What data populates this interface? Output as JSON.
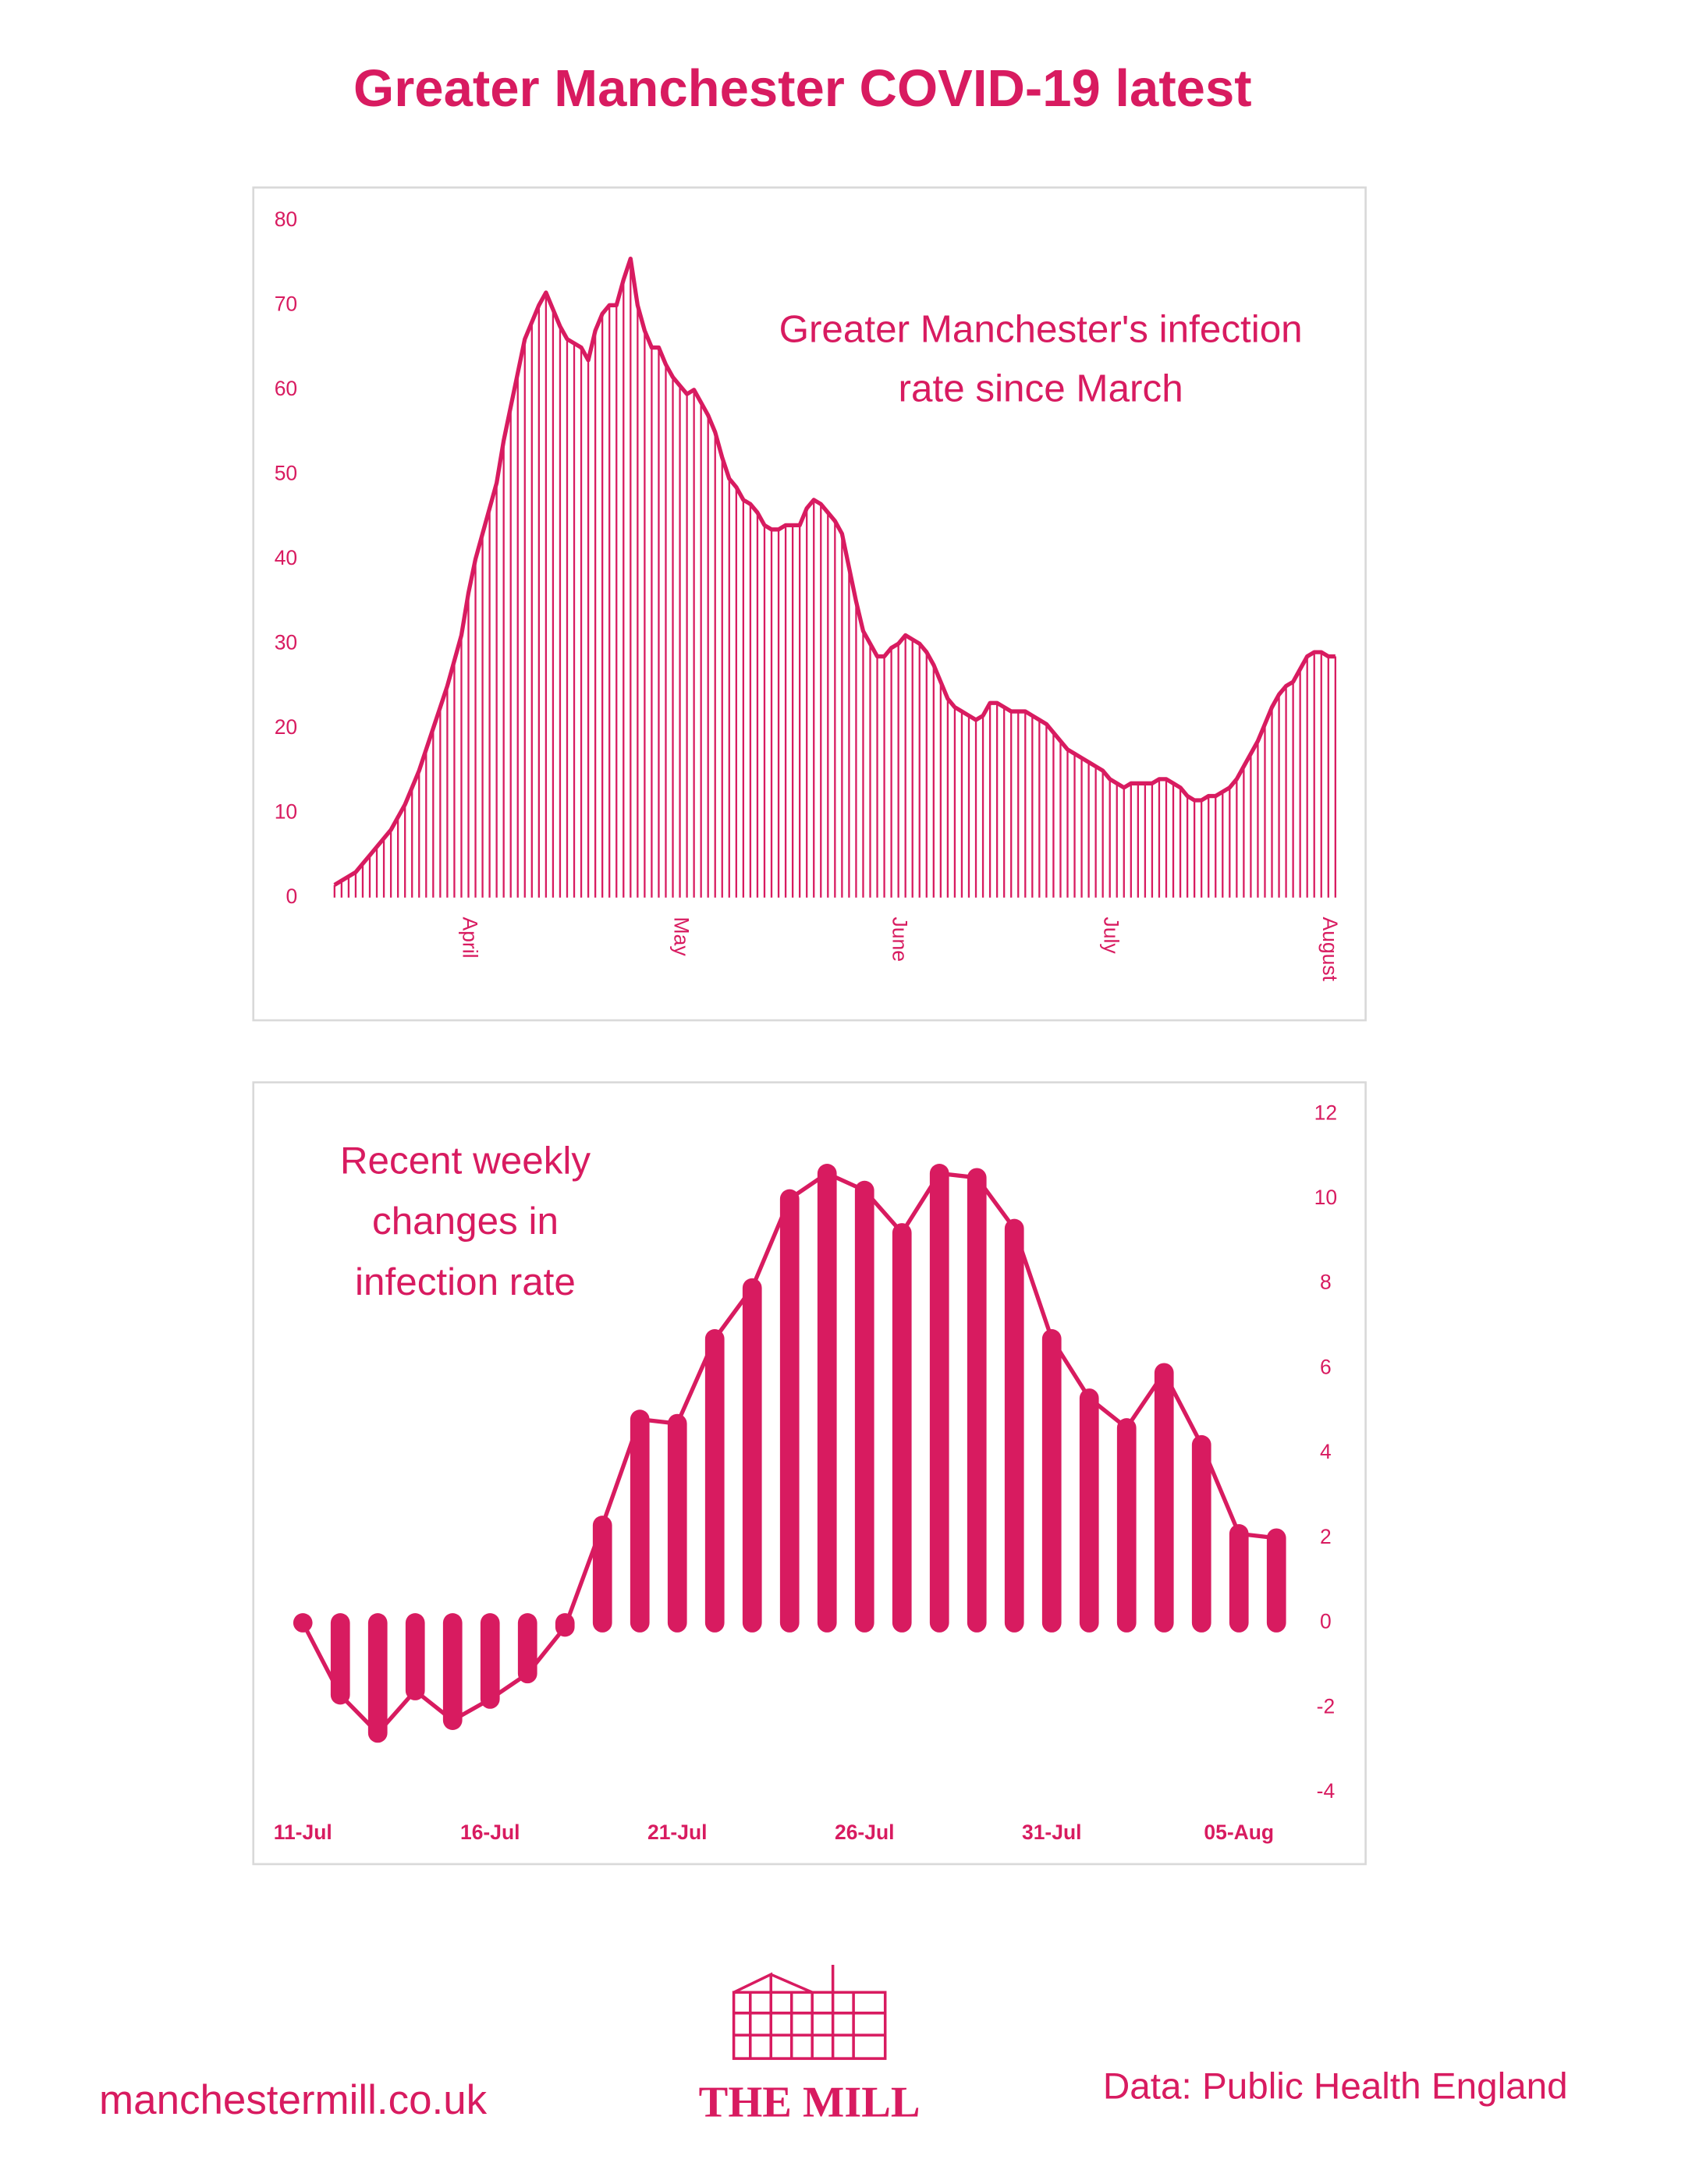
{
  "title": "Greater Manchester COVID-19 latest",
  "footer": {
    "website": "manchestermill.co.uk",
    "logo": "THE MILL",
    "source": "Data: Public Health England"
  },
  "chart_data": [
    {
      "type": "line",
      "droplines": true,
      "color": "#d81b60",
      "annotation": [
        "Greater Manchester's infection",
        "rate since March"
      ],
      "categories": [
        null,
        null,
        null,
        null,
        null,
        null,
        null,
        null,
        null,
        null,
        null,
        null,
        null,
        null,
        null,
        null,
        null,
        null,
        null,
        "April",
        null,
        null,
        null,
        null,
        null,
        null,
        null,
        null,
        null,
        null,
        null,
        null,
        null,
        null,
        null,
        null,
        null,
        null,
        null,
        null,
        null,
        null,
        null,
        null,
        null,
        null,
        null,
        null,
        null,
        "May",
        null,
        null,
        null,
        null,
        null,
        null,
        null,
        null,
        null,
        null,
        null,
        null,
        null,
        null,
        null,
        null,
        null,
        null,
        null,
        null,
        null,
        null,
        null,
        null,
        null,
        null,
        null,
        null,
        null,
        null,
        "June",
        null,
        null,
        null,
        null,
        null,
        null,
        null,
        null,
        null,
        null,
        null,
        null,
        null,
        null,
        null,
        null,
        null,
        null,
        null,
        null,
        null,
        null,
        null,
        null,
        null,
        null,
        null,
        null,
        null,
        "July",
        null,
        null,
        null,
        null,
        null,
        null,
        null,
        null,
        null,
        null,
        null,
        null,
        null,
        null,
        null,
        null,
        null,
        null,
        null,
        null,
        null,
        null,
        null,
        null,
        null,
        null,
        null,
        null,
        null,
        null,
        "August",
        null
      ],
      "values": [
        1.5,
        2,
        2.5,
        3,
        4,
        5,
        6,
        7,
        8,
        9.5,
        11,
        13,
        15,
        17.5,
        20,
        22.5,
        25,
        28,
        31,
        36,
        40,
        43,
        46,
        49,
        54,
        58,
        62,
        66,
        68,
        70,
        71.5,
        69.5,
        67.5,
        66,
        65.5,
        65,
        63.5,
        67,
        69,
        70,
        70,
        73,
        75.5,
        70,
        67,
        65,
        65,
        63,
        61.5,
        60.5,
        59.5,
        60,
        58.5,
        57,
        55,
        52,
        49.5,
        48.5,
        47,
        46.5,
        45.5,
        44,
        43.5,
        43.5,
        44,
        44,
        44,
        46,
        47,
        46.5,
        45.5,
        44.5,
        43,
        39,
        35,
        31.5,
        30,
        28.5,
        28.5,
        29.5,
        30,
        31,
        30.5,
        30,
        29,
        27.5,
        25.5,
        23.5,
        22.5,
        22,
        21.5,
        21,
        21.5,
        23,
        23,
        22.5,
        22,
        22,
        22,
        21.5,
        21,
        20.5,
        19.5,
        18.5,
        17.5,
        17,
        16.5,
        16,
        15.5,
        15,
        14,
        13.5,
        13,
        13.5,
        13.5,
        13.5,
        13.5,
        14,
        14,
        13.5,
        13,
        12,
        11.5,
        11.5,
        12,
        12,
        12.5,
        13,
        14,
        15.5,
        17,
        18.5,
        20.5,
        22.5,
        24,
        25,
        25.5,
        27,
        28.5,
        29,
        29,
        28.5,
        28.5
      ],
      "ylim": [
        0,
        80
      ],
      "yticks": [
        0,
        10,
        20,
        30,
        40,
        50,
        60,
        70,
        80
      ],
      "yaxis": "left"
    },
    {
      "type": "lollipop",
      "color": "#d81b60",
      "annotation": [
        "Recent weekly",
        "changes in",
        "infection rate"
      ],
      "categories": [
        "11-Jul",
        null,
        null,
        null,
        null,
        "16-Jul",
        null,
        null,
        null,
        null,
        "21-Jul",
        null,
        null,
        null,
        null,
        "26-Jul",
        null,
        null,
        null,
        null,
        "31-Jul",
        null,
        null,
        null,
        null,
        "05-Aug",
        null
      ],
      "values": [
        0,
        -1.7,
        -2.6,
        -1.6,
        -2.3,
        -1.8,
        -1.2,
        -0.1,
        2.3,
        4.8,
        4.7,
        6.7,
        7.9,
        10.0,
        10.6,
        10.2,
        9.2,
        10.6,
        10.5,
        9.3,
        6.7,
        5.3,
        4.6,
        5.9,
        4.2,
        2.1,
        2.0
      ],
      "ylim": [
        -4,
        12
      ],
      "yticks": [
        -4,
        -2,
        0,
        2,
        4,
        6,
        8,
        10,
        12
      ],
      "yaxis": "right"
    }
  ]
}
